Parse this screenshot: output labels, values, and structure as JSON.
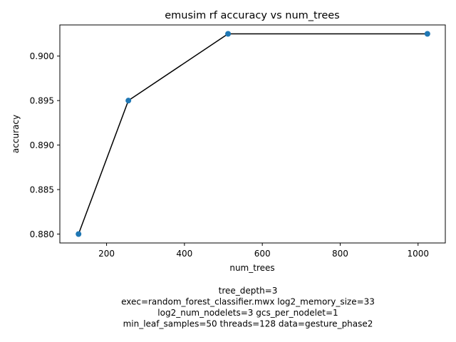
{
  "chart_data": {
    "type": "line",
    "title": "emusim rf accuracy vs num_trees",
    "xlabel": "num_trees",
    "ylabel": "accuracy",
    "xlim": [
      80,
      1070
    ],
    "ylim": [
      0.879,
      0.9035
    ],
    "xticks": [
      200,
      400,
      600,
      800,
      1000
    ],
    "xtick_labels": [
      "200",
      "400",
      "600",
      "800",
      "1000"
    ],
    "yticks": [
      0.88,
      0.885,
      0.89,
      0.895,
      0.9
    ],
    "ytick_labels": [
      "0.880",
      "0.885",
      "0.890",
      "0.895",
      "0.900"
    ],
    "grid": false,
    "series": [
      {
        "x": [
          128,
          256,
          512,
          1024
        ],
        "y": [
          0.88,
          0.895,
          0.9025,
          0.9025
        ],
        "line_color": "#000000",
        "marker_color": "#1f77b4"
      }
    ],
    "annotation_lines": [
      "tree_depth=3",
      "exec=random_forest_classifier.mwx   log2_memory_size=33",
      "log2_num_nodelets=3   gcs_per_nodelet=1",
      "min_leaf_samples=50   threads=128   data=gesture_phase2"
    ]
  }
}
